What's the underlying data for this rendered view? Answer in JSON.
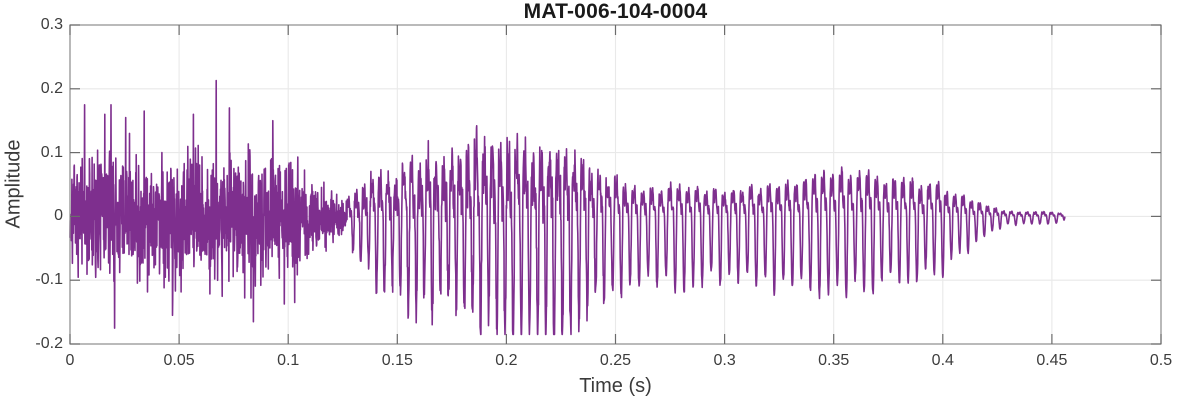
{
  "chart_data": {
    "type": "line",
    "title": "MAT-006-104-0004",
    "xlabel": "Time (s)",
    "ylabel": "Amplitude",
    "xlim": [
      0,
      0.5
    ],
    "ylim": [
      -0.2,
      0.3
    ],
    "xticks": [
      0,
      0.05,
      0.1,
      0.15,
      0.2,
      0.25,
      0.3,
      0.35,
      0.4,
      0.45,
      0.5
    ],
    "xtick_labels": [
      "0",
      "0.05",
      "0.1",
      "0.15",
      "0.2",
      "0.25",
      "0.3",
      "0.35",
      "0.4",
      "0.45",
      "0.5"
    ],
    "yticks": [
      -0.2,
      -0.1,
      0,
      0.1,
      0.2,
      0.3
    ],
    "ytick_labels": [
      "-0.2",
      "-0.1",
      "0",
      "0.1",
      "0.2",
      "0.3"
    ],
    "grid": true,
    "legend": null,
    "line_color": "#7E2F8E",
    "axis_color": "#8c8c8c",
    "tick_mark_color": "#6b6b6b",
    "grid_color": "#e9e9e9",
    "title_color": "#1a1a1a",
    "label_color": "#3b3b3b",
    "description": "Audio amplitude waveform: dense fricative-like noise burst from 0 to 0.127 s (core +/-0.07, spikes to +0.213 / -0.175), voiced quasi-periodic section 0.13-0.25 s swelling to +/-0.17 near 0.185-0.22 s, sustained oscillation +/-0.07 to +/-0.10 from 0.25 to 0.40 s with a swell peaking ~+/-0.105 at 0.35 s, then decay and a small ~+/-0.01 ripple ending at 0.456 s.",
    "waveform": {
      "kind": "speech_like",
      "seed": 7,
      "t_end": 0.456,
      "noise_segment": {
        "t_start": 0,
        "t_end": 0.127,
        "dt": 0.00011,
        "envelope": [
          [
            0,
            0.11
          ],
          [
            0.008,
            0.14
          ],
          [
            0.02,
            0.15
          ],
          [
            0.04,
            0.14
          ],
          [
            0.06,
            0.15
          ],
          [
            0.075,
            0.15
          ],
          [
            0.09,
            0.14
          ],
          [
            0.1,
            0.12
          ],
          [
            0.11,
            0.09
          ],
          [
            0.118,
            0.06
          ],
          [
            0.124,
            0.045
          ],
          [
            0.127,
            0.04
          ]
        ],
        "spikes": [
          [
            0.016,
            0.16
          ],
          [
            0.0205,
            -0.175
          ],
          [
            0.0255,
            0.155
          ],
          [
            0.034,
            0.165
          ],
          [
            0.047,
            -0.155
          ],
          [
            0.0565,
            0.16
          ],
          [
            0.067,
            0.213
          ],
          [
            0.073,
            0.17
          ],
          [
            0.084,
            -0.165
          ],
          [
            0.093,
            0.15
          ],
          [
            0.103,
            -0.135
          ]
        ]
      },
      "voiced_segment": {
        "t_start": 0.127,
        "t_end": 0.456,
        "dt": 0.00012,
        "pos_envelope": [
          [
            0.127,
            0.04
          ],
          [
            0.14,
            0.09
          ],
          [
            0.16,
            0.12
          ],
          [
            0.185,
            0.17
          ],
          [
            0.2,
            0.15
          ],
          [
            0.215,
            0.14
          ],
          [
            0.23,
            0.13
          ],
          [
            0.245,
            0.09
          ],
          [
            0.26,
            0.07
          ],
          [
            0.28,
            0.07
          ],
          [
            0.3,
            0.065
          ],
          [
            0.32,
            0.07
          ],
          [
            0.34,
            0.09
          ],
          [
            0.352,
            0.105
          ],
          [
            0.365,
            0.1
          ],
          [
            0.38,
            0.085
          ],
          [
            0.4,
            0.07
          ],
          [
            0.412,
            0.045
          ],
          [
            0.422,
            0.02
          ],
          [
            0.43,
            0.012
          ],
          [
            0.445,
            0.012
          ],
          [
            0.4555,
            0.008
          ],
          [
            0.456,
            0
          ]
        ],
        "neg_envelope": [
          [
            0.127,
            0.04
          ],
          [
            0.14,
            0.09
          ],
          [
            0.16,
            0.13
          ],
          [
            0.185,
            0.15
          ],
          [
            0.2,
            0.16
          ],
          [
            0.215,
            0.17
          ],
          [
            0.23,
            0.15
          ],
          [
            0.245,
            0.11
          ],
          [
            0.26,
            0.1
          ],
          [
            0.28,
            0.1
          ],
          [
            0.3,
            0.09
          ],
          [
            0.32,
            0.095
          ],
          [
            0.34,
            0.1
          ],
          [
            0.352,
            0.1
          ],
          [
            0.365,
            0.1
          ],
          [
            0.38,
            0.09
          ],
          [
            0.4,
            0.075
          ],
          [
            0.412,
            0.05
          ],
          [
            0.422,
            0.02
          ],
          [
            0.43,
            0.012
          ],
          [
            0.445,
            0.012
          ],
          [
            0.4555,
            0.008
          ],
          [
            0.456,
            0
          ]
        ],
        "freq_profile": [
          [
            0.127,
            278
          ],
          [
            0.24,
            262
          ],
          [
            0.26,
            242
          ],
          [
            0.34,
            242
          ],
          [
            0.39,
            250
          ],
          [
            0.41,
            262
          ],
          [
            0.425,
            280
          ],
          [
            0.456,
            262
          ]
        ],
        "harmonics": [
          [
            1,
            0.72,
            0
          ],
          [
            2,
            0.33,
            1.15
          ],
          [
            3,
            0.2,
            2.4
          ],
          [
            4,
            0.1,
            0.6
          ]
        ],
        "roughness": [
          [
            0.127,
            0.22
          ],
          [
            0.235,
            0.2
          ],
          [
            0.26,
            0.07
          ],
          [
            0.34,
            0.06
          ],
          [
            0.42,
            0.05
          ],
          [
            0.456,
            0.05
          ]
        ]
      }
    }
  }
}
